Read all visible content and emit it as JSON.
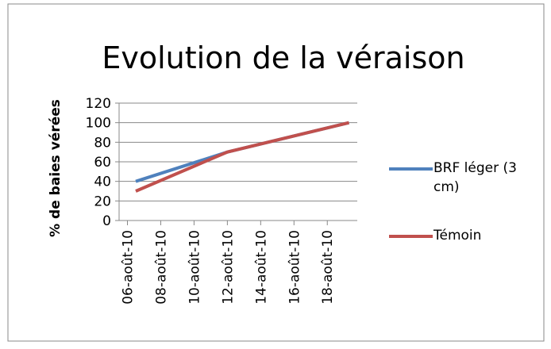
{
  "chart_data": {
    "type": "line",
    "title": "Evolution de la véraison",
    "y_label": "% de baies vérées",
    "xlim": [
      5.5,
      19.8
    ],
    "xticks": [
      {
        "value": 6,
        "label": "06-août-10"
      },
      {
        "value": 8,
        "label": "08-août-10"
      },
      {
        "value": 10,
        "label": "10-août-10"
      },
      {
        "value": 12,
        "label": "12-août-10"
      },
      {
        "value": 14,
        "label": "14-août-10"
      },
      {
        "value": 16,
        "label": "16-août-10"
      },
      {
        "value": 18,
        "label": "18-août-10"
      }
    ],
    "ylim": [
      0,
      120
    ],
    "yticks": [
      0,
      20,
      40,
      60,
      80,
      100,
      120
    ],
    "grid": true,
    "legend": "right",
    "series": [
      {
        "name": "BRF léger (3 cm)",
        "color": "#4f81bd",
        "x": [
          6.5,
          12,
          19.3
        ],
        "values": [
          40,
          70,
          100
        ]
      },
      {
        "name": "Témoin",
        "color": "#c0504d",
        "x": [
          6.5,
          12,
          19.3
        ],
        "values": [
          30,
          70,
          100
        ]
      }
    ]
  }
}
